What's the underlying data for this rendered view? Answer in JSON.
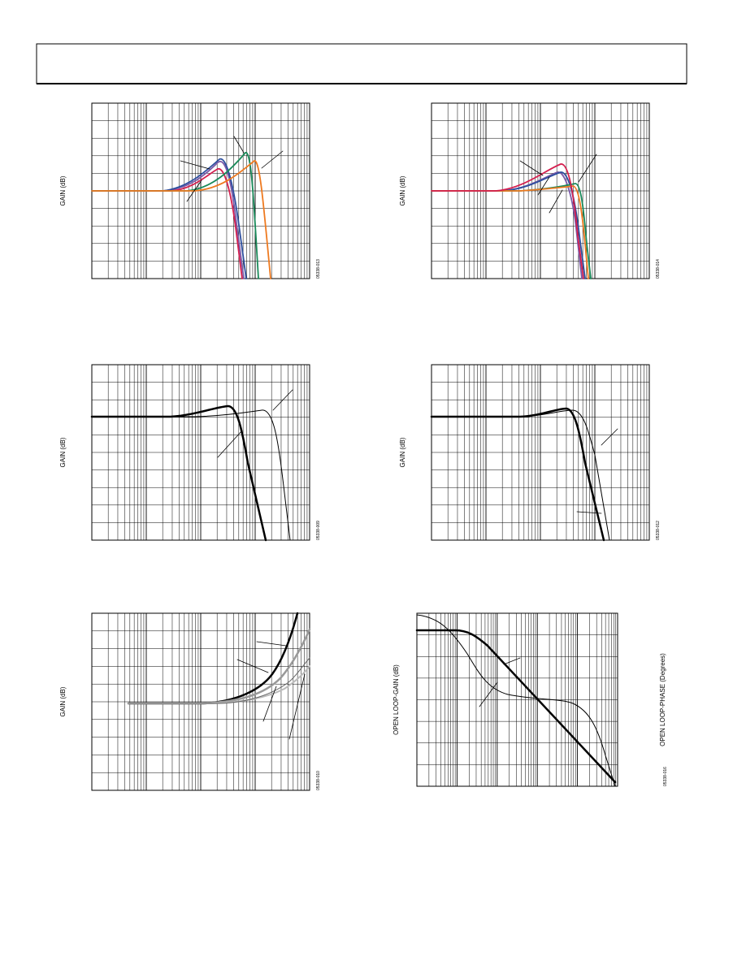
{
  "figures": [
    {
      "y_label": "GAIN (dB)",
      "figure_id": "05338-013"
    },
    {
      "y_label": "GAIN (dB)",
      "figure_id": "05338-014"
    },
    {
      "y_label": "GAIN (dB)",
      "figure_id": "05338-009"
    },
    {
      "y_label": "GAIN (dB)",
      "figure_id": "05338-012"
    },
    {
      "y_label": "GAIN (dB)",
      "figure_id": "05338-010"
    },
    {
      "y_label": "OPEN LOOP-GAIN (dB)",
      "y2_label": "OPEN LOOP-PHASE (Degrees)",
      "figure_id": "05338-016"
    }
  ]
}
